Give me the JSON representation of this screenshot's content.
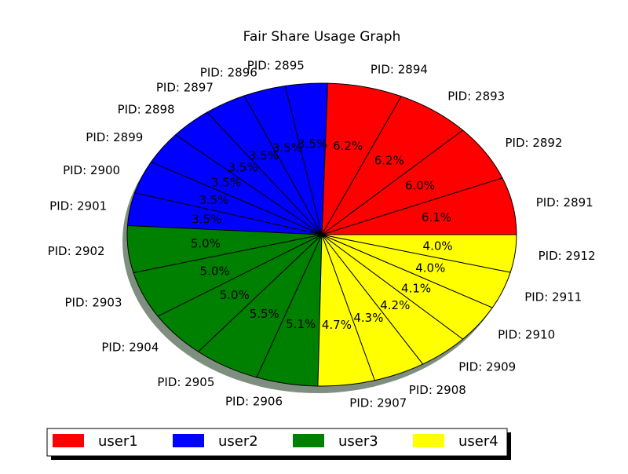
{
  "chart_data": {
    "type": "pie",
    "title": "Fair Share Usage Graph",
    "slices": [
      {
        "label": "PID:  2891",
        "value": 6.1,
        "pct_label": "6.1%",
        "group": "user1"
      },
      {
        "label": "PID:  2892",
        "value": 6.0,
        "pct_label": "6.0%",
        "group": "user1"
      },
      {
        "label": "PID:  2893",
        "value": 6.2,
        "pct_label": "6.2%",
        "group": "user1"
      },
      {
        "label": "PID:  2894",
        "value": 6.2,
        "pct_label": "6.2%",
        "group": "user1"
      },
      {
        "label": "PID:  2895",
        "value": 3.5,
        "pct_label": "3.5%",
        "group": "user2"
      },
      {
        "label": "PID:  2896",
        "value": 3.5,
        "pct_label": "3.5%",
        "group": "user2"
      },
      {
        "label": "PID:  2897",
        "value": 3.5,
        "pct_label": "3.5%",
        "group": "user2"
      },
      {
        "label": "PID:  2898",
        "value": 3.5,
        "pct_label": "3.5%",
        "group": "user2"
      },
      {
        "label": "PID:  2899",
        "value": 3.5,
        "pct_label": "3.5%",
        "group": "user2"
      },
      {
        "label": "PID:  2900",
        "value": 3.5,
        "pct_label": "3.5%",
        "group": "user2"
      },
      {
        "label": "PID:  2901",
        "value": 3.5,
        "pct_label": "3.5%",
        "group": "user2"
      },
      {
        "label": "PID:  2902",
        "value": 5.0,
        "pct_label": "5.0%",
        "group": "user3"
      },
      {
        "label": "PID:  2903",
        "value": 5.0,
        "pct_label": "5.0%",
        "group": "user3"
      },
      {
        "label": "PID:  2904",
        "value": 5.0,
        "pct_label": "5.0%",
        "group": "user3"
      },
      {
        "label": "PID:  2905",
        "value": 5.5,
        "pct_label": "5.5%",
        "group": "user3"
      },
      {
        "label": "PID:  2906",
        "value": 5.1,
        "pct_label": "5.1%",
        "group": "user3"
      },
      {
        "label": "PID:  2907",
        "value": 4.7,
        "pct_label": "4.7%",
        "group": "user4"
      },
      {
        "label": "PID:  2908",
        "value": 4.3,
        "pct_label": "4.3%",
        "group": "user4"
      },
      {
        "label": "PID:  2909",
        "value": 4.2,
        "pct_label": "4.2%",
        "group": "user4"
      },
      {
        "label": "PID:  2910",
        "value": 4.1,
        "pct_label": "4.1%",
        "group": "user4"
      },
      {
        "label": "PID:  2911",
        "value": 4.0,
        "pct_label": "4.0%",
        "group": "user4"
      },
      {
        "label": "PID:  2912",
        "value": 4.0,
        "pct_label": "4.0%",
        "group": "user4"
      }
    ],
    "legend": {
      "position": "bottom",
      "entries": [
        {
          "name": "user1",
          "color": "#ff0000"
        },
        {
          "name": "user2",
          "color": "#0000ff"
        },
        {
          "name": "user3",
          "color": "#008000"
        },
        {
          "name": "user4",
          "color": "#ffff00"
        }
      ]
    },
    "shadow": true,
    "shadow_color": "#7f8f7f"
  }
}
